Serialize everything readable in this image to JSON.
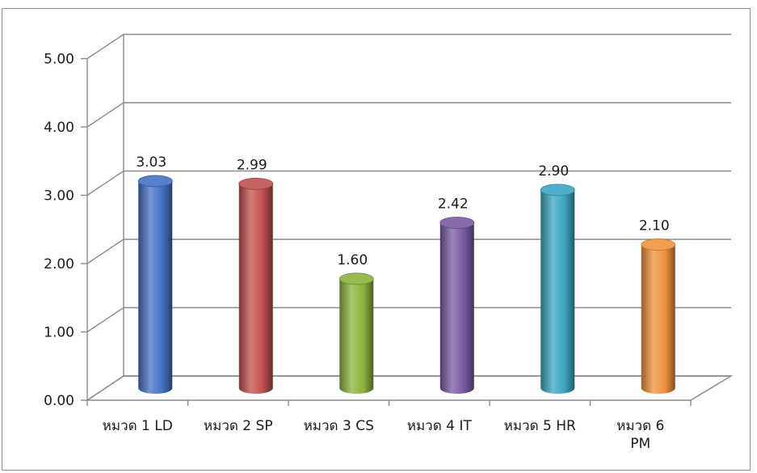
{
  "chart_data": {
    "type": "bar",
    "style": "3d-cylinder",
    "categories": [
      "หมวด 1 LD",
      "หมวด 2 SP",
      "หมวด 3 CS",
      "หมวด 4 IT",
      "หมวด 5 HR",
      "หมวด 6 PM"
    ],
    "category_lines": [
      [
        "หมวด 1 LD"
      ],
      [
        "หมวด 2 SP"
      ],
      [
        "หมวด 3 CS"
      ],
      [
        "หมวด 4 IT"
      ],
      [
        "หมวด 5 HR"
      ],
      [
        "หมวด 6",
        "PM"
      ]
    ],
    "values": [
      3.03,
      2.99,
      1.6,
      2.42,
      2.9,
      2.1
    ],
    "value_labels": [
      "3.03",
      "2.99",
      "1.60",
      "2.42",
      "2.90",
      "2.10"
    ],
    "bar_colors": [
      "#4472c4",
      "#c0504d",
      "#8cb33e",
      "#7a5aa3",
      "#3ba6c2",
      "#f0923e"
    ],
    "ylim": [
      0,
      5
    ],
    "yticks": [
      "0.00",
      "1.00",
      "2.00",
      "3.00",
      "4.00",
      "5.00"
    ],
    "grid": true,
    "legend": "none",
    "title": "",
    "xlabel": "",
    "ylabel": ""
  }
}
